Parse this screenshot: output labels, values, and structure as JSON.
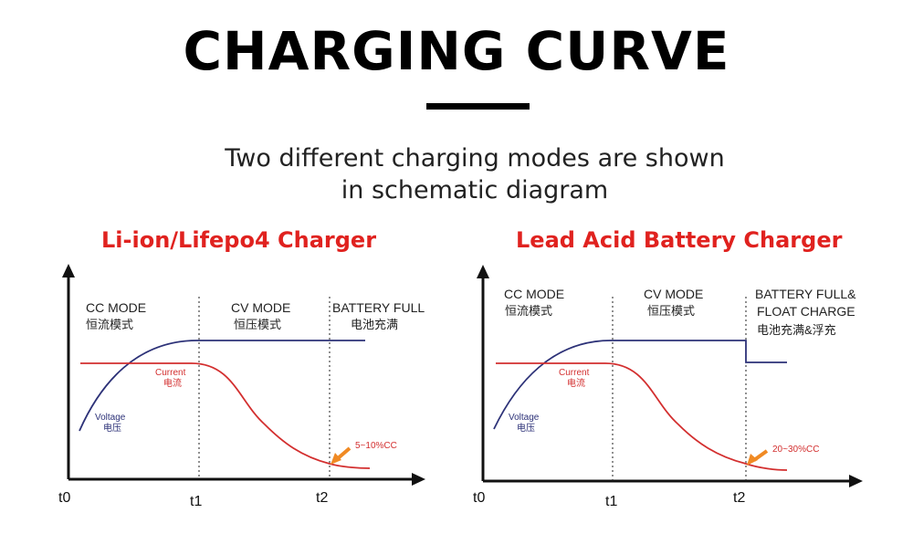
{
  "header": {
    "title": "CHARGING CURVE",
    "subtitle_line1": "Two different charging modes are shown",
    "subtitle_line2": "in schematic diagram"
  },
  "colors": {
    "title_red": "#e0221f",
    "voltage": "#2d3278",
    "current": "#d32f2f",
    "arrow": "#f08a24",
    "axis": "#111111"
  },
  "panels": [
    {
      "title": "Li-ion/Lifepo4 Charger",
      "modes": [
        {
          "line1": "CC MODE",
          "line2": "恒流模式"
        },
        {
          "line1": "CV MODE",
          "line2": "恒压模式"
        },
        {
          "line1": "BATTERY FULL",
          "line2": "电池充满"
        }
      ],
      "voltage_label": "Voltage",
      "voltage_label_cn": "电压",
      "current_label": "Current",
      "current_label_cn": "电流",
      "end_current_label": "5~10%CC",
      "float_step": false,
      "ticks": [
        "t0",
        "t1",
        "t2"
      ]
    },
    {
      "title": "Lead Acid Battery Charger",
      "modes": [
        {
          "line1": "CC MODE",
          "line2": "恒流模式"
        },
        {
          "line1": "CV MODE",
          "line2": "恒压模式"
        },
        {
          "line1": "BATTERY FULL&",
          "line1b": "FLOAT CHARGE",
          "line2": "电池充满&浮充"
        }
      ],
      "voltage_label": "Voltage",
      "voltage_label_cn": "电压",
      "current_label": "Current",
      "current_label_cn": "电流",
      "end_current_label": "20~30%CC",
      "float_step": true,
      "ticks": [
        "t0",
        "t1",
        "t2"
      ]
    }
  ]
}
